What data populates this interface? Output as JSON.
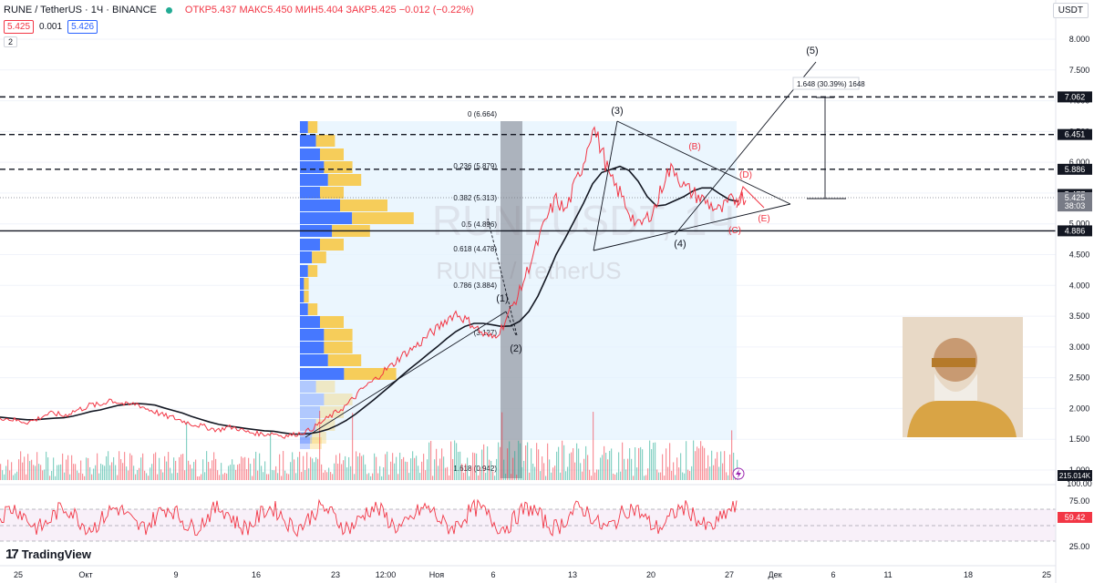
{
  "header": {
    "symbol": "RUNE / TetherUS · 1Ч · BINANCE",
    "ohlc": "ОТКР5.437 МАКС5.450 МИН5.404 ЗАКР5.425 −0.012 (−0.22%)"
  },
  "price_row": {
    "bid": "5.425",
    "spread": "0.001",
    "ask": "5.426"
  },
  "collapse_label": "2",
  "currency": "USDT",
  "watermark": {
    "main": "RUNEUSDT, 1Ч",
    "sub": "RUNE / TetherUS"
  },
  "brand": "TradingView",
  "price_axis": [
    "8.000",
    "7.500",
    "7.000",
    "6.500",
    "6.000",
    "5.500",
    "5.000",
    "4.500",
    "4.000",
    "3.500",
    "3.000",
    "2.500",
    "2.000",
    "1.500",
    "1.000"
  ],
  "price_labels": [
    {
      "text": "7.062",
      "value": 7.062,
      "color": "#131722"
    },
    {
      "text": "6.451",
      "value": 6.451,
      "color": "#131722"
    },
    {
      "text": "5.886",
      "value": 5.886,
      "color": "#131722"
    },
    {
      "text": "5.477",
      "value": 5.477,
      "color": "#131722"
    },
    {
      "text": "5.425",
      "value": 5.425,
      "color": "#787b86"
    },
    {
      "text": "38:03",
      "value": 5.29,
      "color": "#787b86"
    },
    {
      "text": "4.886",
      "value": 4.886,
      "color": "#131722"
    }
  ],
  "volume_label": "215.014K",
  "rsi_axis": [
    "100.00",
    "75.00",
    "50.00",
    "25.00"
  ],
  "rsi_value": "59.42",
  "time_axis": [
    "25",
    "Окт",
    "9",
    "16",
    "23",
    "12:00",
    "Ноя",
    "6",
    "13",
    "20",
    "27",
    "Дек",
    "6",
    "11",
    "18",
    "25"
  ],
  "fib_labels": [
    "0 (6.664)",
    "0.236 (5.879)",
    "0.382 (5.313)",
    "0.5 (4.896)",
    "0.618 (4.478)",
    "0.786 (3.884)",
    "(3.127)",
    "1.618 (0.942)"
  ],
  "wave_labels": [
    "(1)",
    "(2)",
    "(3)",
    "(4)",
    "(5)"
  ],
  "abc_labels": [
    "(B)",
    "(C)",
    "(D)",
    "(E)"
  ],
  "measure_label": "1.648 (30.39%) 1648",
  "colors": {
    "up": "#22ab94",
    "down": "#f23645",
    "accent": "#2962ff",
    "rsi": "#f23645",
    "grid": "#f0f3fa"
  },
  "chart_data": {
    "type": "line",
    "x": [
      0,
      10,
      20,
      30,
      40,
      50,
      60,
      70,
      80,
      90,
      100,
      110,
      120,
      130,
      140,
      150,
      160,
      170,
      180,
      190,
      200,
      210,
      220,
      230,
      240,
      250,
      260,
      270,
      280,
      290,
      300,
      310,
      320,
      330,
      340,
      350,
      360,
      370,
      380,
      390,
      400,
      410,
      420,
      430,
      440,
      450,
      460,
      470,
      480,
      490,
      500,
      510,
      520,
      530,
      540,
      550,
      560,
      570,
      580,
      590,
      600,
      610,
      620,
      630,
      640,
      650,
      660,
      670,
      680,
      690,
      700,
      710,
      720,
      730,
      740,
      750,
      760,
      770,
      780,
      790,
      800,
      810
    ],
    "series": [
      {
        "values": [
          1.86,
          1.83,
          1.8,
          1.78,
          1.82,
          1.9,
          1.92,
          1.88,
          1.95,
          2.0,
          2.06,
          2.05,
          2.15,
          2.1,
          2.05,
          2.08,
          2.0,
          1.95,
          1.88,
          1.85,
          1.8,
          1.75,
          1.72,
          1.68,
          1.65,
          1.7,
          1.68,
          1.62,
          1.6,
          1.58,
          1.6,
          1.55,
          1.57,
          1.6,
          1.65,
          1.75,
          1.85,
          1.95,
          2.05,
          2.2,
          2.35,
          2.45,
          2.6,
          2.7,
          2.85,
          2.95,
          3.05,
          3.2,
          3.3,
          3.45,
          3.55,
          3.45,
          3.35,
          3.2,
          3.15,
          3.3,
          3.6,
          3.9,
          4.3,
          4.7,
          5.1,
          5.4,
          5.2,
          5.6,
          6.0,
          6.6,
          6.2,
          5.7,
          5.5,
          5.2,
          4.95,
          5.1,
          5.3,
          5.8,
          5.9,
          5.6,
          5.5,
          5.4,
          5.3,
          5.2,
          5.35,
          5.43
        ]
      }
    ],
    "ylim": [
      0.85,
      8.2
    ],
    "xlim": [
      0,
      1160
    ]
  }
}
